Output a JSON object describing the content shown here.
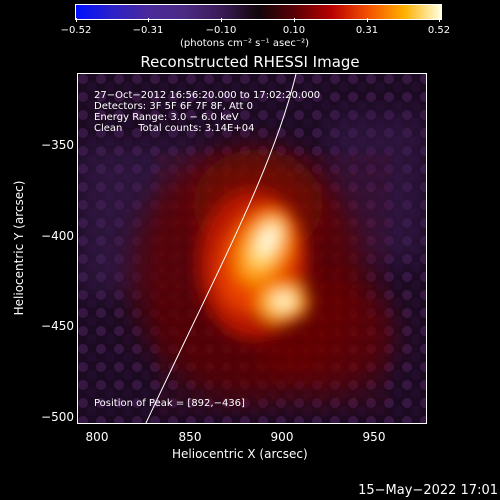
{
  "colorbar": {
    "ticks": [
      "−0.52",
      "−0.31",
      "−0.10",
      "0.10",
      "0.31",
      "0.52"
    ],
    "units": "(photons cm⁻² s⁻¹ asec⁻²)"
  },
  "title": "Reconstructed RHESSI Image",
  "info": {
    "time": "27−Oct−2012 16:56:20.000 to 17:02:20.000",
    "detectors": "Detectors: 3F 5F 6F 7F 8F, Att 0",
    "energy": "Energy Range: 3.0 − 6.0 keV",
    "clean": "Clean     Total counts: 3.14E+04",
    "peak": "Position of Peak = [892,−436]"
  },
  "axes": {
    "xlabel": "Heliocentric X (arcsec)",
    "ylabel": "Heliocentric Y (arcsec)",
    "xticks": [
      "800",
      "850",
      "900",
      "950"
    ],
    "yticks": [
      "−350",
      "−400",
      "−450",
      "−500"
    ]
  },
  "timestamp": "15−May−2022 17:01",
  "colors": {
    "background": "#000000",
    "limb": "#ffffff"
  }
}
